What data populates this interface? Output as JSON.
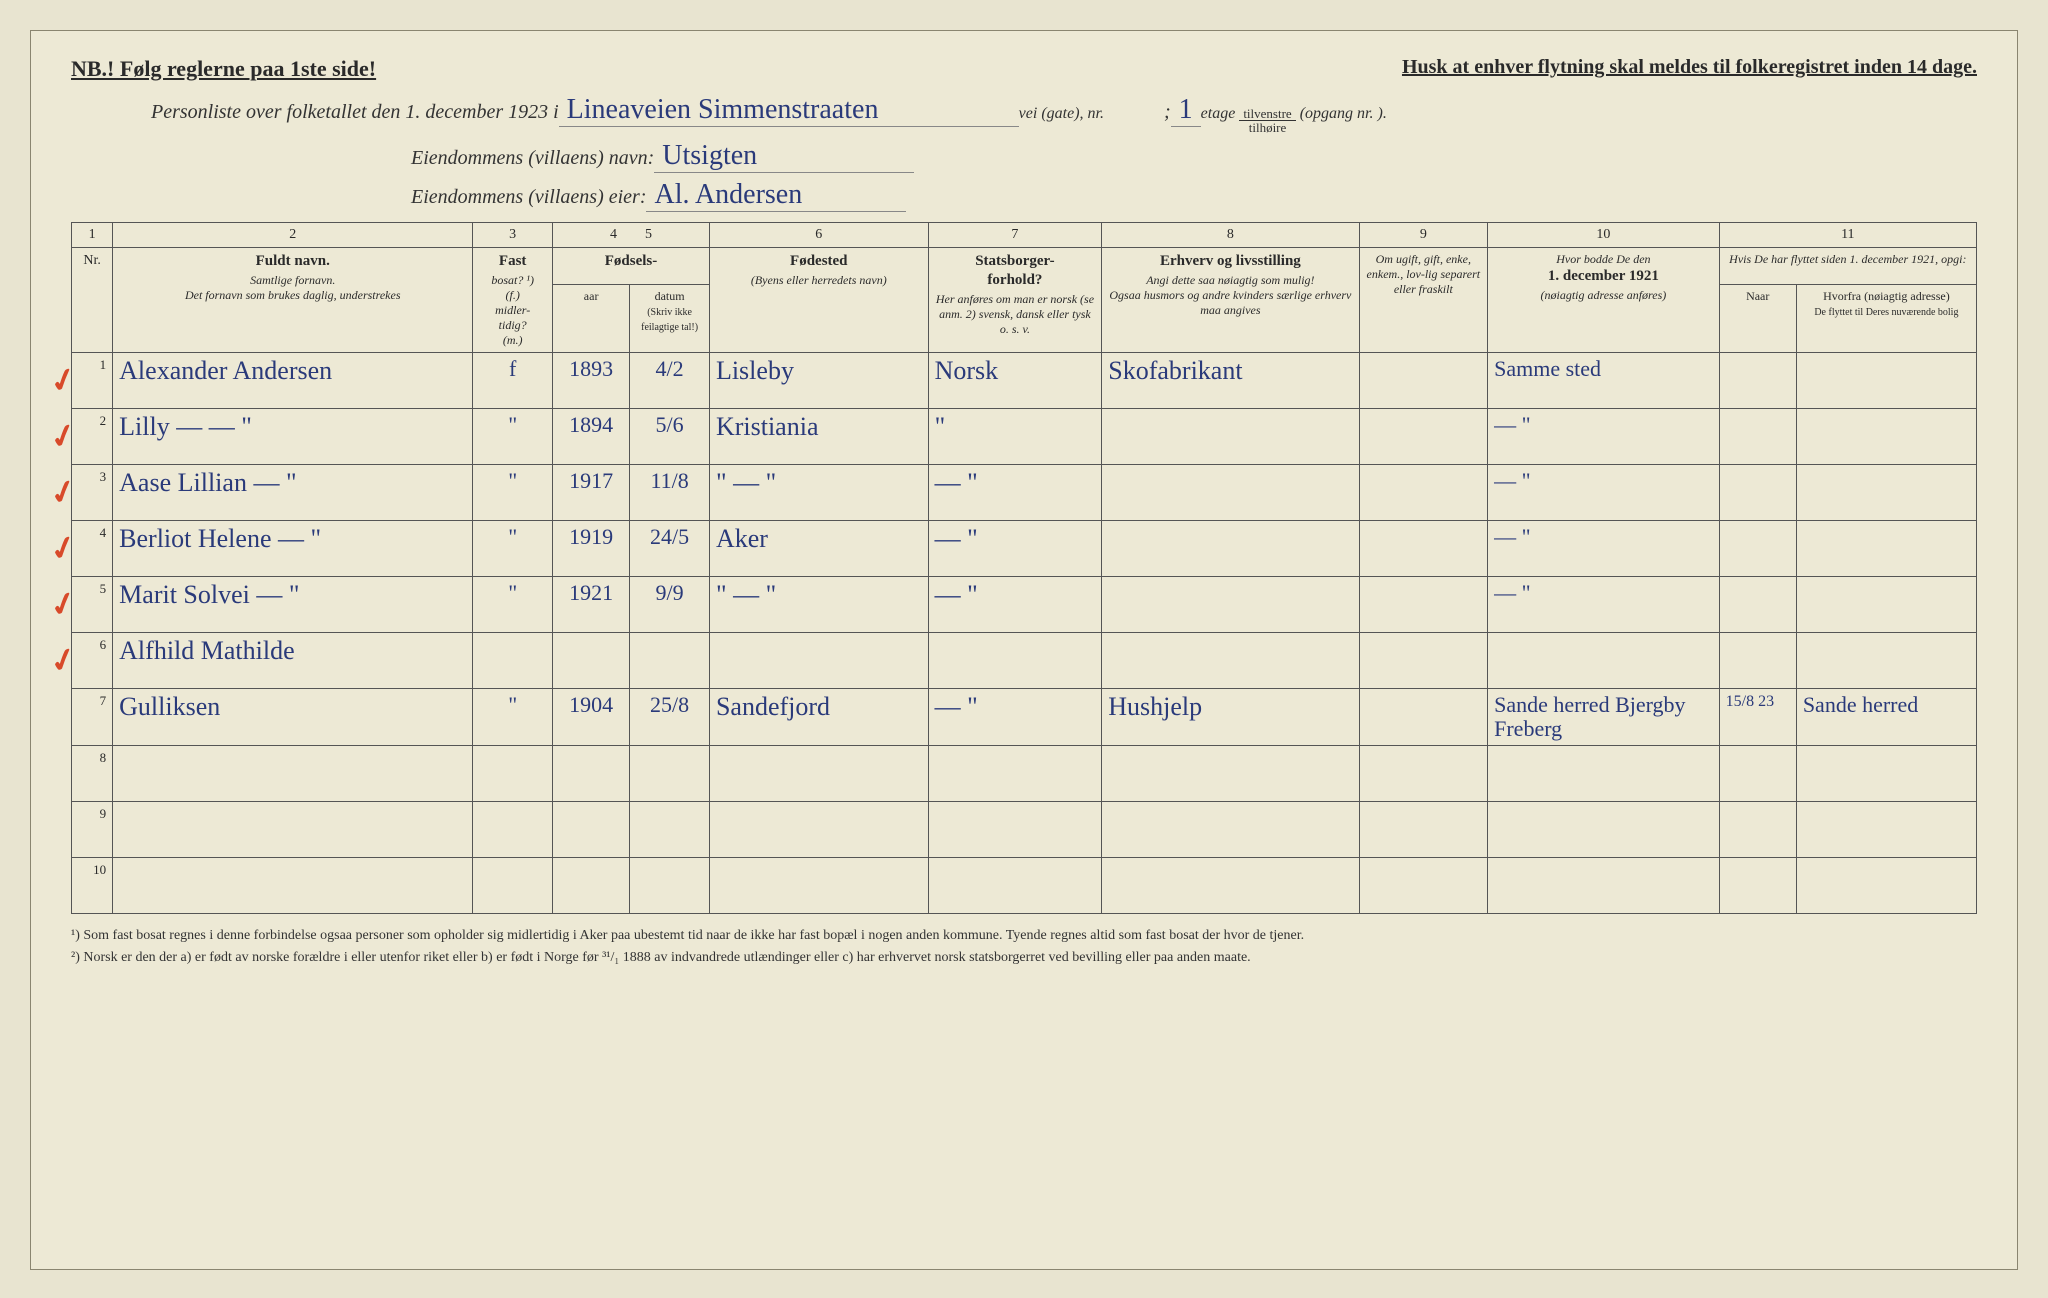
{
  "top": {
    "nb_left": "NB.! Følg reglerne paa 1ste side!",
    "nb_right": "Husk at enhver flytning skal meldes til folkeregistret inden 14 dage."
  },
  "header": {
    "line1_pre": "Personliste over folketallet den 1. december 1923 i",
    "street_hw": "Lineaveien Simmenstraaten",
    "line1_post1": "vei (gate), nr.",
    "semicolon": ";",
    "etage_num": "1",
    "etage_label": "etage",
    "frac_top": "tilvenstre",
    "frac_bot": "tilhøire",
    "opgang": "(opgang nr.      ).",
    "villa_name_label": "Eiendommens (villaens) navn:",
    "villa_name_hw": "Utsigten",
    "villa_owner_label": "Eiendommens (villaens) eier:",
    "villa_owner_hw": "Al. Andersen"
  },
  "colnums": [
    "1",
    "2",
    "3",
    "4",
    "5",
    "6",
    "7",
    "8",
    "9",
    "10",
    "11"
  ],
  "heads": {
    "nr": "Nr.",
    "name_lbl": "Fuldt navn.",
    "name_sub": "Samtlige fornavn.\nDet fornavn som brukes daglig, understrekes",
    "fast_lbl": "Fast",
    "fast_sub": "bosat? ¹)\n(f.)\nmidler-\ntidig?\n(m.)",
    "fodsels": "Fødsels-",
    "aar": "aar",
    "datum": "datum",
    "aar_sub": "(Skriv ikke feilagtige tal!)",
    "fodested_lbl": "Fødested",
    "fodested_sub": "(Byens eller herredets navn)",
    "stats_lbl": "Statsborger-\nforhold?",
    "stats_sub": "Her anføres om man er norsk (se anm. 2) svensk, dansk eller tysk o. s. v.",
    "erhv_lbl": "Erhverv og livsstilling",
    "erhv_sub": "Angi dette saa nøiagtig som mulig!\nOgsaa husmors og andre kvinders særlige erhverv maa angives",
    "gift_lbl": "Om ugift, gift, enke, enkem., lov-lig separert eller fraskilt",
    "bodde_lbl": "Hvor bodde De den",
    "bodde_date": "1. december 1921",
    "bodde_sub": "(nøiagtig adresse anføres)",
    "flyt_lbl": "Hvis De har flyttet siden 1. december 1921, opgi:",
    "flyt_naar": "Naar",
    "flyt_hvor": "Hvorfra (nøiagtig adresse)",
    "flyt_sub": "De flyttet til Deres nuværende bolig"
  },
  "rows": [
    {
      "nr": "1",
      "check": true,
      "name": "Alexander Andersen",
      "fast": "f",
      "aar": "1893",
      "datum": "4/2",
      "sted": "Lisleby",
      "stats": "Norsk",
      "erhv": "Skofabrikant",
      "gift": "",
      "bodde": "Samme sted",
      "naar": "",
      "hvor": ""
    },
    {
      "nr": "2",
      "check": true,
      "name": "Lilly  —  —  \"",
      "fast": "\"",
      "aar": "1894",
      "datum": "5/6",
      "sted": "Kristiania",
      "stats": "\"",
      "erhv": "",
      "gift": "",
      "bodde": "—  \"",
      "naar": "",
      "hvor": ""
    },
    {
      "nr": "3",
      "check": true,
      "name": "Aase Lillian  —  \"",
      "fast": "\"",
      "aar": "1917",
      "datum": "11/8",
      "sted": "\"  —  \"",
      "stats": "— \"",
      "erhv": "",
      "gift": "",
      "bodde": "—  \"",
      "naar": "",
      "hvor": ""
    },
    {
      "nr": "4",
      "check": true,
      "name": "Berliot Helene  —  \"",
      "fast": "\"",
      "aar": "1919",
      "datum": "24/5",
      "sted": "Aker",
      "stats": "— \"",
      "erhv": "",
      "gift": "",
      "bodde": "—  \"",
      "naar": "",
      "hvor": ""
    },
    {
      "nr": "5",
      "check": true,
      "name": "Marit Solvei  —  \"",
      "fast": "\"",
      "aar": "1921",
      "datum": "9/9",
      "sted": "\"  —  \"",
      "stats": "— \"",
      "erhv": "",
      "gift": "",
      "bodde": "—  \"",
      "naar": "",
      "hvor": ""
    },
    {
      "nr": "6",
      "check": true,
      "name": "Alfhild Mathilde",
      "fast": "",
      "aar": "",
      "datum": "",
      "sted": "",
      "stats": "",
      "erhv": "",
      "gift": "",
      "bodde": "",
      "naar": "",
      "hvor": ""
    },
    {
      "nr": "7",
      "check": false,
      "name": "      Gulliksen",
      "fast": "\"",
      "aar": "1904",
      "datum": "25/8",
      "sted": "Sandefjord",
      "stats": "— \"",
      "erhv": "Hushjelp",
      "gift": "",
      "bodde": "Sande herred Bjergby Freberg",
      "naar": "15/8 23",
      "hvor": "Sande herred"
    },
    {
      "nr": "8",
      "check": false,
      "name": "",
      "fast": "",
      "aar": "",
      "datum": "",
      "sted": "",
      "stats": "",
      "erhv": "",
      "gift": "",
      "bodde": "",
      "naar": "",
      "hvor": ""
    },
    {
      "nr": "9",
      "check": false,
      "name": "",
      "fast": "",
      "aar": "",
      "datum": "",
      "sted": "",
      "stats": "",
      "erhv": "",
      "gift": "",
      "bodde": "",
      "naar": "",
      "hvor": ""
    },
    {
      "nr": "10",
      "check": false,
      "name": "",
      "fast": "",
      "aar": "",
      "datum": "",
      "sted": "",
      "stats": "",
      "erhv": "",
      "gift": "",
      "bodde": "",
      "naar": "",
      "hvor": ""
    }
  ],
  "footnotes": {
    "f1": "¹) Som fast bosat regnes i denne forbindelse ogsaa personer som opholder sig midlertidig i Aker paa ubestemt tid naar de ikke har fast bopæl i nogen anden kommune. Tyende regnes altid som fast bosat der hvor de tjener.",
    "f2": "²) Norsk er den der a) er født av norske forældre i eller utenfor riket eller b) er født i Norge før ³¹/₁ 1888 av indvandrede utlændinger eller c) har erhvervet norsk statsborgerret ved bevilling eller paa anden maate."
  }
}
